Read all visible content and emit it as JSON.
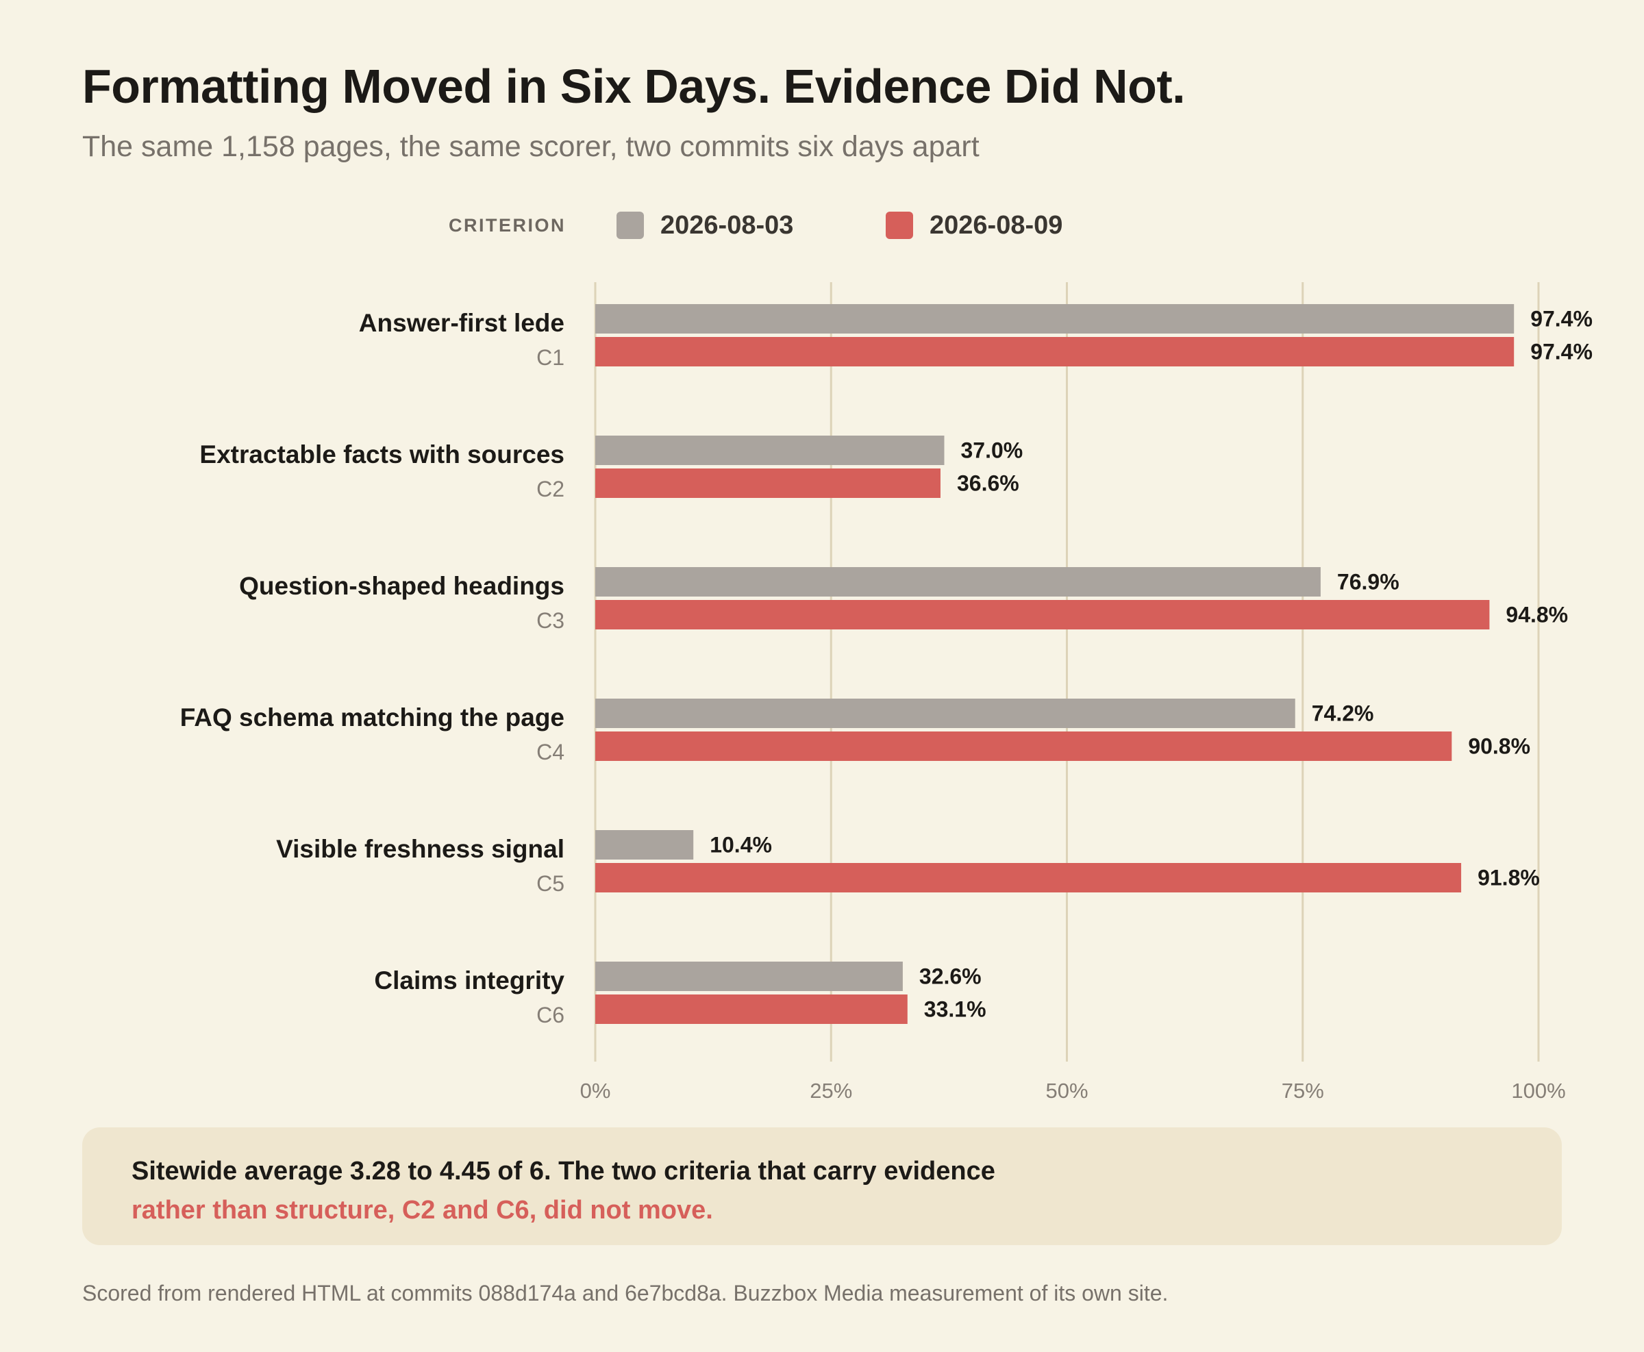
{
  "title": "Formatting Moved in Six Days. Evidence Did Not.",
  "subtitle": "The same 1,158 pages, the same scorer, two commits six days apart",
  "legend_title": "CRITERION",
  "colors": {
    "series_a": "#aaa49e",
    "series_b": "#d65f5a",
    "gridline": "#ddd3b8",
    "background": "#f7f3e5"
  },
  "chart_data": {
    "type": "bar",
    "orientation": "horizontal",
    "categories": [
      {
        "name": "Answer-first lede",
        "code": "C1"
      },
      {
        "name": "Extractable facts with sources",
        "code": "C2"
      },
      {
        "name": "Question-shaped headings",
        "code": "C3"
      },
      {
        "name": "FAQ schema matching the page",
        "code": "C4"
      },
      {
        "name": "Visible freshness signal",
        "code": "C5"
      },
      {
        "name": "Claims integrity",
        "code": "C6"
      }
    ],
    "series": [
      {
        "name": "2026-08-03",
        "values": [
          97.4,
          37.0,
          76.9,
          74.2,
          10.4,
          32.6
        ],
        "labels": [
          "97.4%",
          "37.0%",
          "76.9%",
          "74.2%",
          "10.4%",
          "32.6%"
        ]
      },
      {
        "name": "2026-08-09",
        "values": [
          97.4,
          36.6,
          94.8,
          90.8,
          91.8,
          33.1
        ],
        "labels": [
          "97.4%",
          "36.6%",
          "94.8%",
          "90.8%",
          "91.8%",
          "33.1%"
        ]
      }
    ],
    "xlim": [
      0,
      100
    ],
    "ticks": [
      0,
      25,
      50,
      75,
      100
    ],
    "tick_labels": [
      "0%",
      "25%",
      "50%",
      "75%",
      "100%"
    ],
    "grid": true,
    "legend": "top"
  },
  "callout": {
    "line1": "Sitewide average 3.28 to 4.45 of 6. The two criteria that carry evidence",
    "line2": "rather than structure, C2 and C6, did not move."
  },
  "footnote": "Scored from rendered HTML at commits 088d174a and 6e7bcd8a. Buzzbox Media measurement of its own site."
}
